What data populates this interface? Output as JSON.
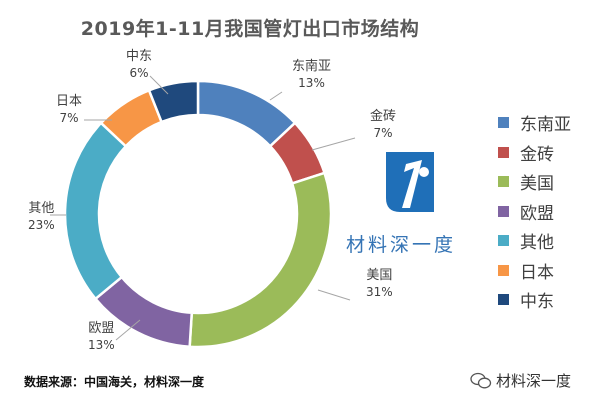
{
  "chart_data": {
    "type": "pie",
    "title": "2019年1-11月我国管灯出口市场结构",
    "donut": true,
    "slices": [
      {
        "name": "东南亚",
        "value": 13,
        "label": "13%",
        "color": "#4f81bd"
      },
      {
        "name": "金砖",
        "value": 7,
        "label": "7%",
        "color": "#c0504d"
      },
      {
        "name": "美国",
        "value": 31,
        "label": "31%",
        "color": "#9bbb59"
      },
      {
        "name": "欧盟",
        "value": 13,
        "label": "13%",
        "color": "#8064a2"
      },
      {
        "name": "其他",
        "value": 23,
        "label": "23%",
        "color": "#4bacc6"
      },
      {
        "name": "日本",
        "value": 7,
        "label": "7%",
        "color": "#f79646"
      },
      {
        "name": "中东",
        "value": 6,
        "label": "6%",
        "color": "#1f497d"
      }
    ],
    "legend_position": "right"
  },
  "brand": {
    "name": "材料深一度",
    "logo_color": "#1f6fb8"
  },
  "footer": {
    "source": "数据来源：中国海关，材料深一度",
    "watermark": "材料深一度"
  }
}
